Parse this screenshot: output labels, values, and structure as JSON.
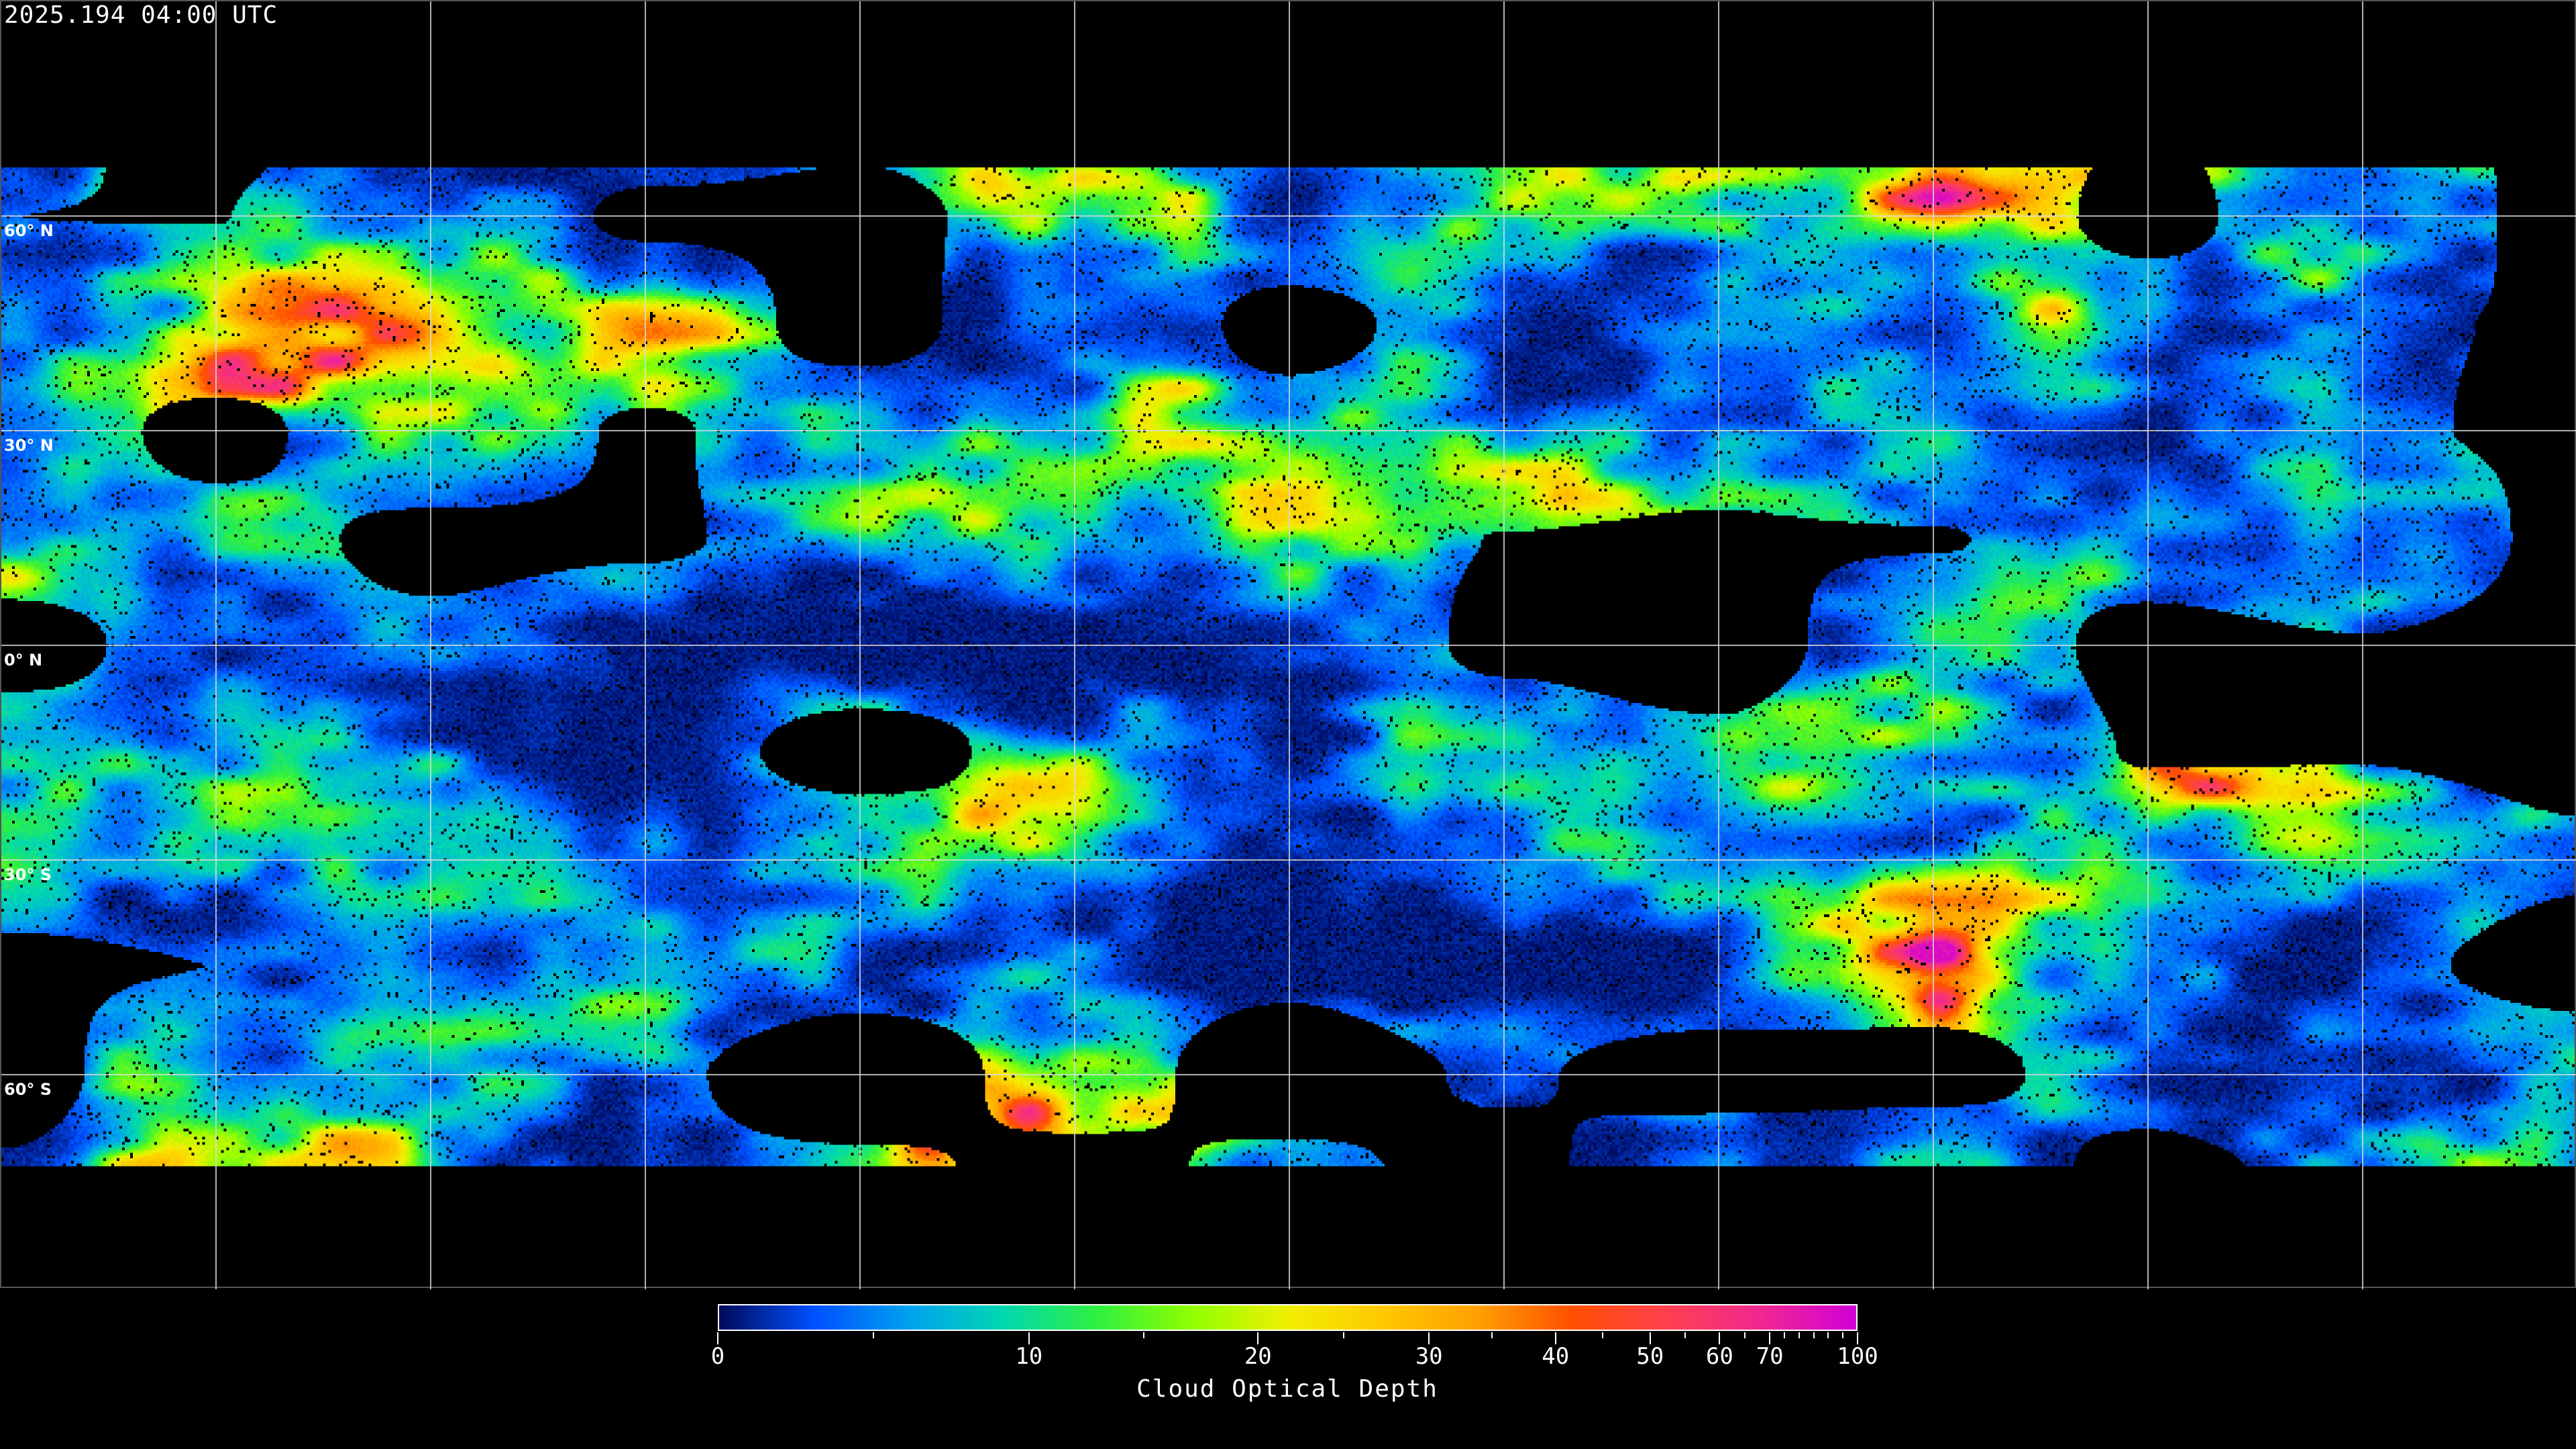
{
  "header": {
    "timestamp": "2025.194 04:00 UTC"
  },
  "map": {
    "projection": "equirectangular",
    "variable": "cloud-optical-depth",
    "gridline_color": "#dcdcdc",
    "coastline_color": "#ffffff",
    "latitude_labels": [
      "60° N",
      "30° N",
      "0° N",
      "30° S",
      "60° S"
    ],
    "latitude_values": [
      60,
      30,
      0,
      -30,
      -60
    ],
    "longitude_gridlines_every_deg": 30
  },
  "colorbar": {
    "label": "Cloud Optical Depth",
    "min": 0,
    "max": 100,
    "tick_labels": [
      "0",
      "10",
      "20",
      "30",
      "40",
      "50",
      "60",
      "70",
      "100"
    ],
    "tick_values": [
      0,
      10,
      20,
      30,
      40,
      50,
      60,
      70,
      100
    ],
    "minor_tick_values": [
      5,
      15,
      25,
      35,
      45,
      55,
      65,
      75,
      80,
      85,
      90,
      95
    ],
    "colors": [
      "#000a5a",
      "#0050ff",
      "#00a0f0",
      "#00d8b0",
      "#30f040",
      "#90ff00",
      "#f0f000",
      "#ffc800",
      "#ffa000",
      "#ff5000",
      "#ff4050",
      "#f02890",
      "#d000d8"
    ]
  }
}
